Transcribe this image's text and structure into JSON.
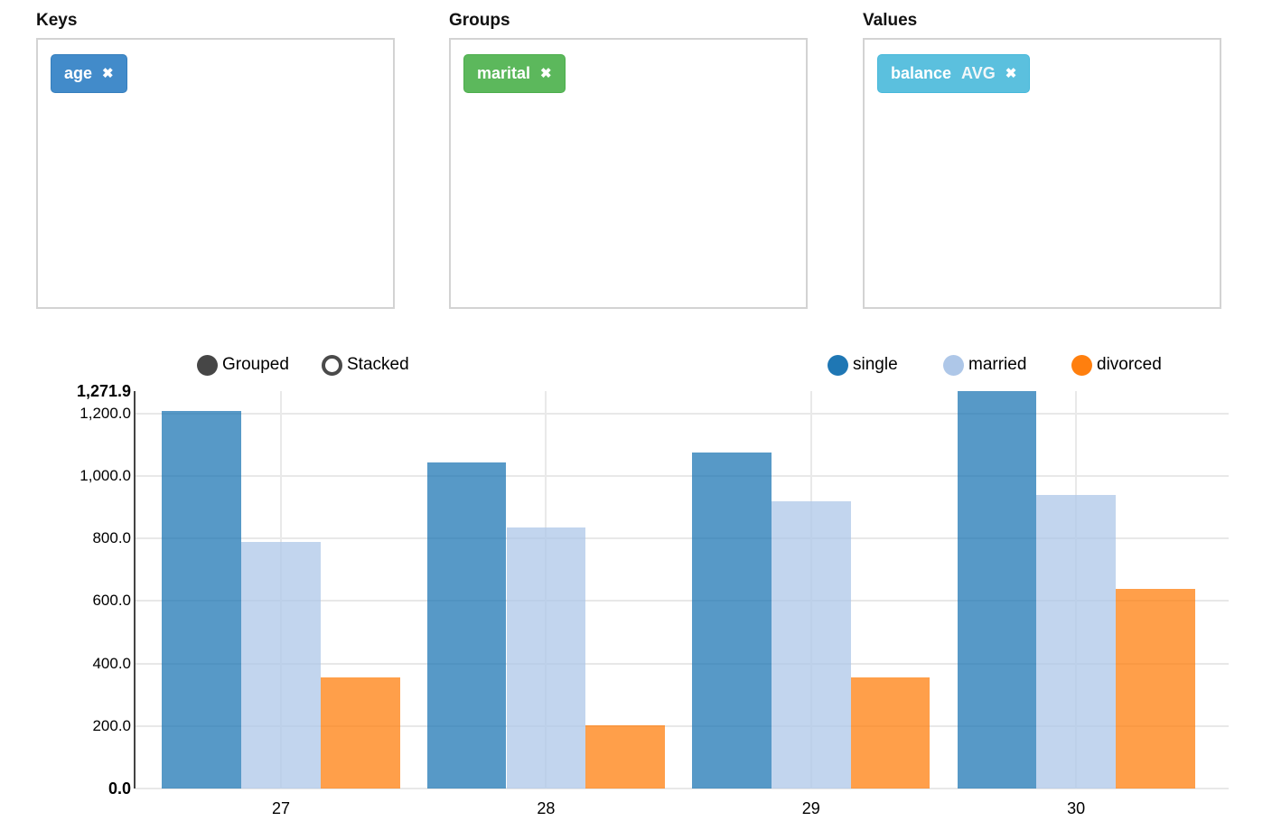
{
  "panels": [
    {
      "title": "Keys",
      "tags": [
        {
          "text": "age",
          "remove_icon": "✖",
          "color": "#428bca",
          "border_color": "#357ebd"
        }
      ]
    },
    {
      "title": "Groups",
      "tags": [
        {
          "text": "marital",
          "remove_icon": "✖",
          "color": "#5cb85c",
          "border_color": "#4cae4c"
        }
      ]
    },
    {
      "title": "Values",
      "tags": [
        {
          "text": "balance",
          "aggregate": "AVG",
          "remove_icon": "✖",
          "color": "#5bc0de",
          "border_color": "#46b8da"
        }
      ]
    }
  ],
  "chart_controls": {
    "options": [
      {
        "label": "Grouped",
        "selected": true
      },
      {
        "label": "Stacked",
        "selected": false
      }
    ],
    "radio_color": "#464646"
  },
  "chart_data": {
    "type": "bar",
    "mode": "grouped",
    "title": "",
    "xlabel": "",
    "ylabel": "",
    "categories": [
      "27",
      "28",
      "29",
      "30"
    ],
    "series": [
      {
        "name": "single",
        "color": "#1f77b4",
        "values": [
          1208,
          1045,
          1076,
          1271.9
        ]
      },
      {
        "name": "married",
        "color": "#aec7e8",
        "values": [
          790,
          835,
          920,
          940
        ]
      },
      {
        "name": "divorced",
        "color": "#ff7f0e",
        "values": [
          356,
          203,
          356,
          638
        ]
      }
    ],
    "ylim": [
      0,
      1271.9
    ],
    "y_ticks": [
      {
        "value": 0,
        "label": "0.0",
        "bold": true
      },
      {
        "value": 200,
        "label": "200.0",
        "bold": false
      },
      {
        "value": 400,
        "label": "400.0",
        "bold": false
      },
      {
        "value": 600,
        "label": "600.0",
        "bold": false
      },
      {
        "value": 800,
        "label": "800.0",
        "bold": false
      },
      {
        "value": 1000,
        "label": "1,000.0",
        "bold": false
      },
      {
        "value": 1200,
        "label": "1,200.0",
        "bold": false
      },
      {
        "value": 1271.9,
        "label": "1,271.9",
        "bold": true
      }
    ],
    "grid": true,
    "legend_position": "top-right",
    "bar_opacity": 0.75
  }
}
